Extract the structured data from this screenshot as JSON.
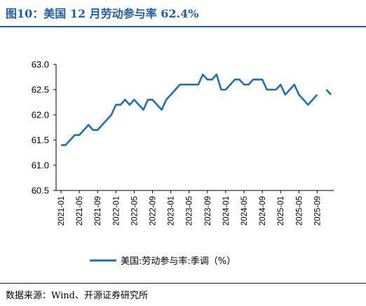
{
  "title": "图10：美国 12 月劳动参与率 62.4%",
  "source": "数据来源：Wind、开源证券研究所",
  "chart_data": {
    "type": "line",
    "title": "图10：美国 12 月劳动参与率 62.4%",
    "ylim": [
      60.5,
      63.0
    ],
    "yticks": [
      "60.5",
      "61.0",
      "61.5",
      "62.0",
      "62.5",
      "63.0"
    ],
    "xticks": [
      "2021-01",
      "2021-05",
      "2021-09",
      "2022-01",
      "2022-05",
      "2022-09",
      "2023-01",
      "2023-05",
      "2023-09",
      "2024-01",
      "2024-05",
      "2024-09",
      "2025-01",
      "2025-05",
      "2025-09"
    ],
    "legend_position": "bottom",
    "grid": false,
    "color": "#1f6fb5",
    "series": [
      {
        "name": "美国:劳动参与率:季调（%）",
        "x": [
          "2021-01",
          "2021-02",
          "2021-03",
          "2021-04",
          "2021-05",
          "2021-06",
          "2021-07",
          "2021-08",
          "2021-09",
          "2021-10",
          "2021-11",
          "2021-12",
          "2022-01",
          "2022-02",
          "2022-03",
          "2022-04",
          "2022-05",
          "2022-06",
          "2022-07",
          "2022-08",
          "2022-09",
          "2022-10",
          "2022-11",
          "2022-12",
          "2023-01",
          "2023-02",
          "2023-03",
          "2023-04",
          "2023-05",
          "2023-06",
          "2023-07",
          "2023-08",
          "2023-09",
          "2023-10",
          "2023-11",
          "2023-12",
          "2024-01",
          "2024-02",
          "2024-03",
          "2024-04",
          "2024-05",
          "2024-06",
          "2024-07",
          "2024-08",
          "2024-09",
          "2024-10",
          "2024-11",
          "2024-12",
          "2025-01",
          "2025-02",
          "2025-03",
          "2025-04",
          "2025-05",
          "2025-06",
          "2025-07",
          "2025-08",
          "2025-09",
          "2025-10",
          "2025-11",
          "2025-12"
        ],
        "values": [
          61.4,
          61.4,
          61.5,
          61.6,
          61.6,
          61.7,
          61.8,
          61.7,
          61.7,
          61.8,
          61.9,
          62.0,
          62.2,
          62.2,
          62.3,
          62.2,
          62.3,
          62.2,
          62.1,
          62.3,
          62.3,
          62.2,
          62.1,
          62.3,
          62.4,
          62.5,
          62.6,
          62.6,
          62.6,
          62.6,
          62.6,
          62.8,
          62.7,
          62.7,
          62.8,
          62.5,
          62.5,
          62.6,
          62.7,
          62.7,
          62.6,
          62.6,
          62.7,
          62.7,
          62.7,
          62.5,
          62.5,
          62.5,
          62.6,
          62.4,
          62.5,
          62.6,
          62.4,
          62.3,
          62.2,
          62.3,
          62.4,
          null,
          62.5,
          62.4
        ]
      }
    ]
  }
}
